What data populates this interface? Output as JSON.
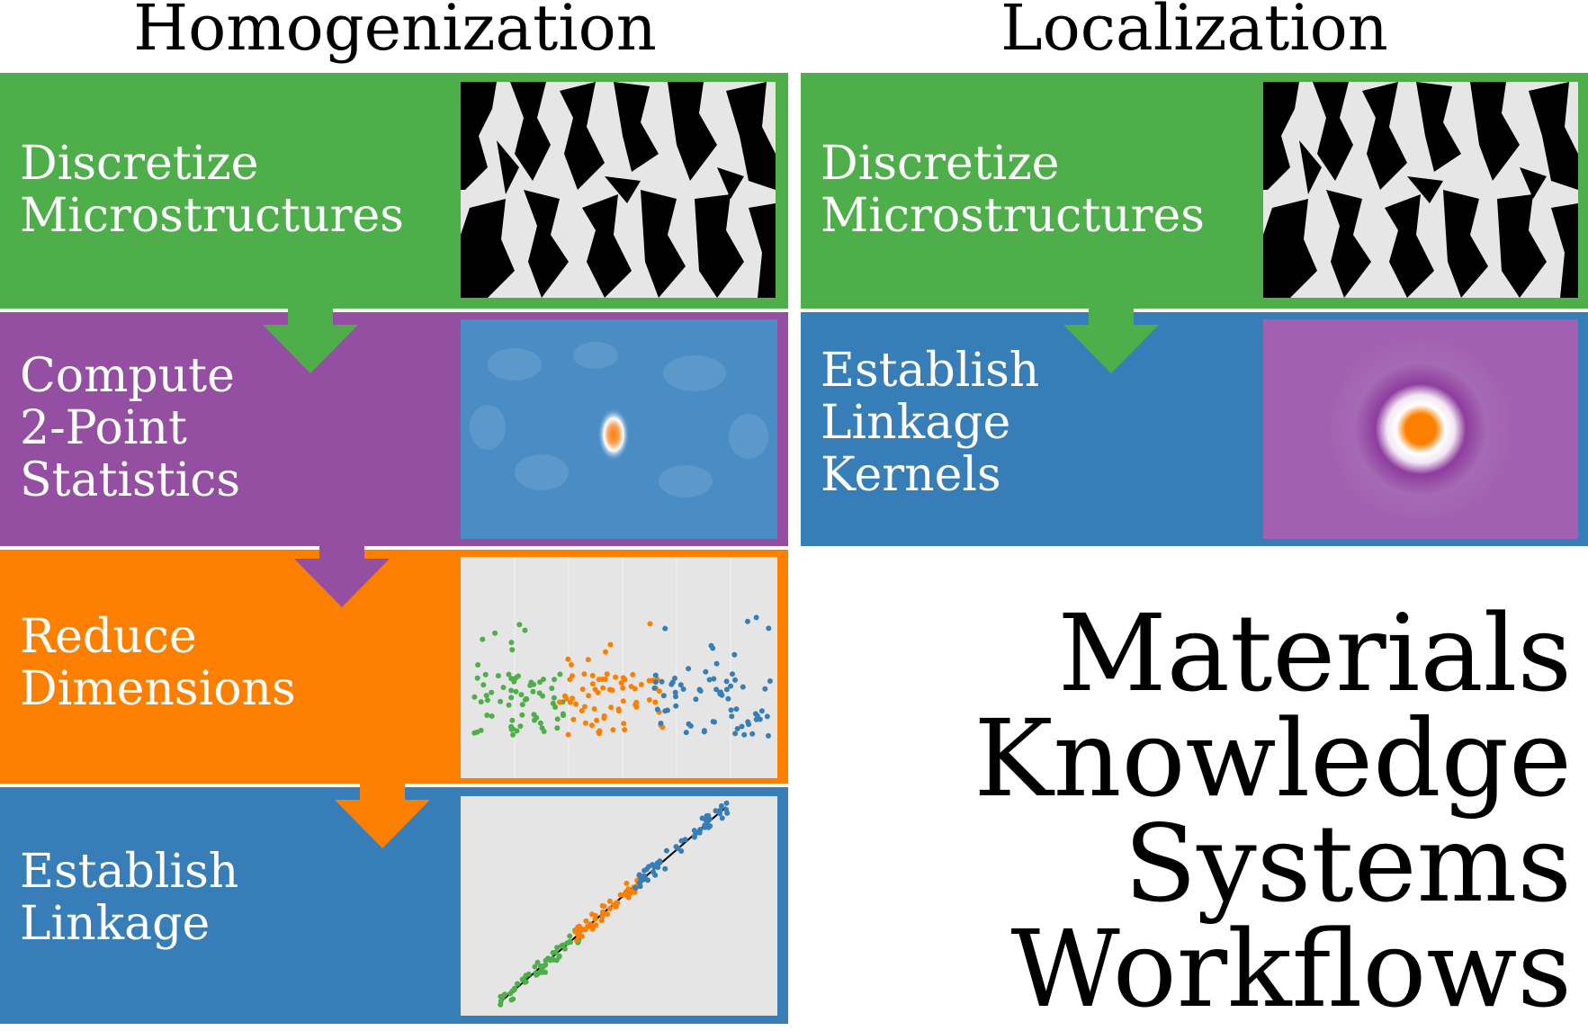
{
  "columns": {
    "left_title": "Homogenization",
    "right_title": "Localization"
  },
  "homogenization": {
    "step1": "Discretize\nMicrostructures",
    "step2": "Compute\n2-Point\nStatistics",
    "step3": "Reduce\nDimensions",
    "step4": "Establish\nLinkage"
  },
  "localization": {
    "step1": "Discretize\nMicrostructures",
    "step2": "Establish\nLinkage\nKernels"
  },
  "big_title": {
    "line1": "Materials",
    "line2": "Knowledge",
    "line3": "Systems",
    "line4": "Workflows"
  },
  "colors": {
    "green": "#4dae4a",
    "purple": "#944ea2",
    "orange": "#fd7f00",
    "blue": "#377eb8",
    "plot_bg": "#e5e5e5"
  },
  "icons": {
    "microstructure": "random-black-white-microstructure-image",
    "two_point": "two-point-statistics-heatmap",
    "kernel": "influence-kernel-heatmap",
    "pca": "pca-scatter-plot",
    "linkage": "linkage-parity-plot"
  }
}
